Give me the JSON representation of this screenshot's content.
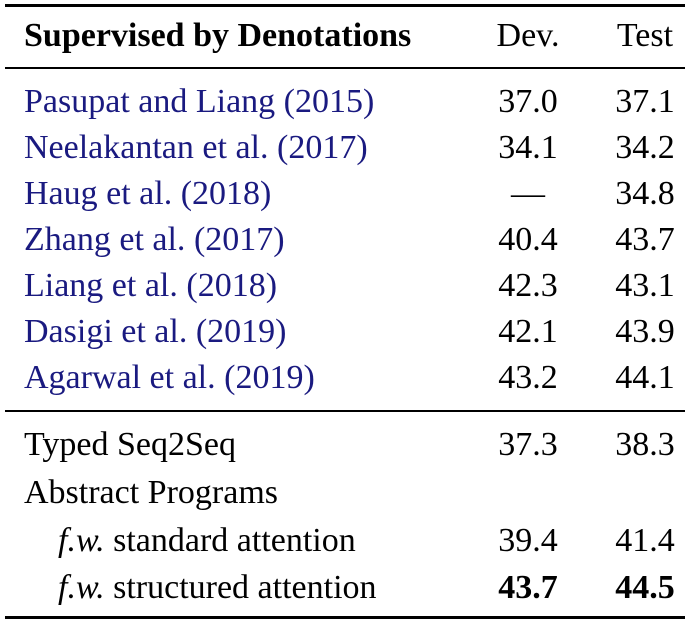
{
  "header": {
    "method": "Supervised by Denotations",
    "dev": "Dev.",
    "test": "Test"
  },
  "prior_work": [
    {
      "authors": "Pasupat and Liang",
      "year": "2015",
      "dev": "37.0",
      "test": "37.1"
    },
    {
      "authors": "Neelakantan et al.",
      "year": "2017",
      "dev": "34.1",
      "test": "34.2"
    },
    {
      "authors": "Haug et al.",
      "year": "2018",
      "dev": "—",
      "test": "34.8"
    },
    {
      "authors": "Zhang et al.",
      "year": "2017",
      "dev": "40.4",
      "test": "43.7"
    },
    {
      "authors": "Liang et al.",
      "year": "2018",
      "dev": "42.3",
      "test": "43.1"
    },
    {
      "authors": "Dasigi et al.",
      "year": "2019",
      "dev": "42.1",
      "test": "43.9"
    },
    {
      "authors": "Agarwal et al.",
      "year": "2019",
      "dev": "43.2",
      "test": "44.1"
    }
  ],
  "ours": {
    "typed_seq2seq": {
      "label": "Typed Seq2Seq",
      "dev": "37.3",
      "test": "38.3"
    },
    "abstract_programs": {
      "label": "Abstract Programs"
    },
    "standard_attention": {
      "prefix": "f.w.",
      "label": "standard attention",
      "dev": "39.4",
      "test": "41.4"
    },
    "structured_attention": {
      "prefix": "f.w.",
      "label": "structured attention",
      "dev": "43.7",
      "test": "44.5"
    }
  },
  "colors": {
    "citation": "#1a1a80",
    "text": "#000000"
  }
}
